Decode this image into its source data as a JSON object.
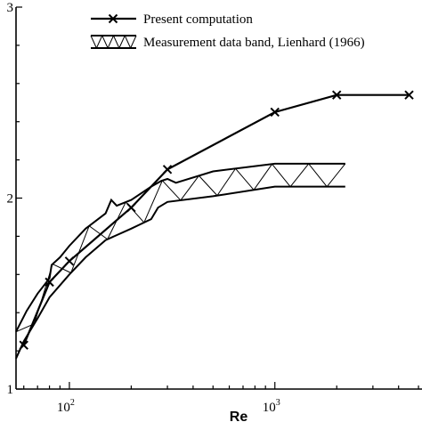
{
  "chart_data": {
    "type": "line",
    "xlabel": "Re",
    "ylabel": "",
    "xscale": "log",
    "xlim": [
      55,
      5200
    ],
    "ylim": [
      1,
      3
    ],
    "grid": false,
    "legend_position": "top-center",
    "x_ticks": [
      {
        "value": 100,
        "base": "10",
        "exp": "2"
      },
      {
        "value": 1000,
        "base": "10",
        "exp": "3"
      }
    ],
    "y_ticks": [
      {
        "value": 1,
        "label": "1"
      },
      {
        "value": 2,
        "label": "2"
      },
      {
        "value": 3,
        "label": "3"
      }
    ],
    "series": [
      {
        "name": "Present computation",
        "style": "line-x-markers",
        "x": [
          60,
          80,
          100,
          200,
          300,
          1000,
          2000,
          4500
        ],
        "y": [
          1.23,
          1.56,
          1.67,
          1.95,
          2.15,
          2.45,
          2.54,
          2.54
        ]
      },
      {
        "name": "Measurement data band, Lienhard (1966)",
        "style": "hatched-band",
        "upper": {
          "x": [
            55,
            62,
            70,
            80,
            82,
            90,
            100,
            120,
            150,
            160,
            170,
            200,
            250,
            280,
            300,
            330,
            500,
            1000,
            2200
          ],
          "y": [
            1.3,
            1.41,
            1.5,
            1.58,
            1.65,
            1.69,
            1.75,
            1.84,
            1.92,
            1.99,
            1.96,
            1.99,
            2.06,
            2.09,
            2.1,
            2.08,
            2.14,
            2.18,
            2.18
          ]
        },
        "lower": {
          "x": [
            55,
            60,
            70,
            80,
            100,
            120,
            150,
            200,
            250,
            270,
            300,
            500,
            1000,
            2200
          ],
          "y": [
            1.16,
            1.25,
            1.37,
            1.48,
            1.6,
            1.69,
            1.78,
            1.84,
            1.89,
            1.95,
            1.98,
            2.01,
            2.06,
            2.06
          ]
        }
      }
    ]
  }
}
